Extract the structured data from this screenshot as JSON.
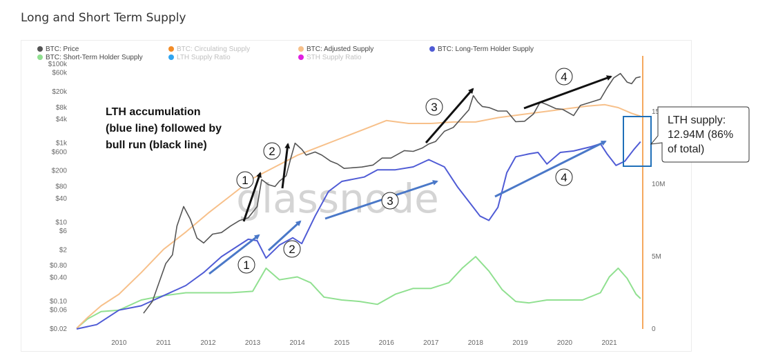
{
  "page": {
    "title": "Long and Short Term Supply"
  },
  "chart_data": {
    "type": "line",
    "title": "Long and Short Term Supply",
    "x_ticks": [
      "2010",
      "2011",
      "2012",
      "2013",
      "2014",
      "2015",
      "2016",
      "2017",
      "2018",
      "2019",
      "2020",
      "2021"
    ],
    "x_range": [
      2009.05,
      2021.75
    ],
    "y_left": {
      "scale": "log",
      "range": [
        0.02,
        100000
      ],
      "ticks": [
        {
          "label": "$100k",
          "value": 100000
        },
        {
          "label": "$60k",
          "value": 60000
        },
        {
          "label": "$20k",
          "value": 20000
        },
        {
          "label": "$8k",
          "value": 8000
        },
        {
          "label": "$4k",
          "value": 4000
        },
        {
          "label": "$1k",
          "value": 1000
        },
        {
          "label": "$600",
          "value": 600
        },
        {
          "label": "$200",
          "value": 200
        },
        {
          "label": "$80",
          "value": 80
        },
        {
          "label": "$40",
          "value": 40
        },
        {
          "label": "$10",
          "value": 10
        },
        {
          "label": "$6",
          "value": 6
        },
        {
          "label": "$2",
          "value": 2
        },
        {
          "label": "$0.80",
          "value": 0.8
        },
        {
          "label": "$0.40",
          "value": 0.4
        },
        {
          "label": "$0.10",
          "value": 0.1
        },
        {
          "label": "$0.06",
          "value": 0.06
        },
        {
          "label": "$0.02",
          "value": 0.02
        }
      ]
    },
    "y_right": {
      "scale": "linear",
      "range": [
        0,
        18300000
      ],
      "ticks": [
        {
          "label": "0",
          "value": 0
        },
        {
          "label": "5M",
          "value": 5000000
        },
        {
          "label": "10M",
          "value": 10000000
        },
        {
          "label": "15M",
          "value": 15000000
        }
      ]
    },
    "legend": [
      {
        "label": "BTC: Price",
        "color": "#555555",
        "active": true
      },
      {
        "label": "BTC: Circulating Supply",
        "color": "#f28c28",
        "active": false
      },
      {
        "label": "BTC: Adjusted Supply",
        "color": "#f7c08a",
        "active": true
      },
      {
        "label": "BTC: Long-Term Holder Supply",
        "color": "#4f5bd5",
        "active": true
      },
      {
        "label": "BTC: Short-Term Holder Supply",
        "color": "#90e090",
        "active": true
      },
      {
        "label": "LTH Supply Ratio",
        "color": "#30a5f0",
        "active": false
      },
      {
        "label": "STH Supply Ratio",
        "color": "#e020e0",
        "active": false
      }
    ],
    "watermark": "glassnode",
    "series": [
      {
        "name": "BTC: Price",
        "axis": "left",
        "color": "#555555",
        "points": [
          [
            2010.55,
            0.05
          ],
          [
            2010.75,
            0.1
          ],
          [
            2010.9,
            0.3
          ],
          [
            2011.05,
            0.9
          ],
          [
            2011.2,
            1.5
          ],
          [
            2011.3,
            8
          ],
          [
            2011.45,
            25
          ],
          [
            2011.6,
            12
          ],
          [
            2011.75,
            4
          ],
          [
            2011.9,
            3
          ],
          [
            2012.1,
            5
          ],
          [
            2012.3,
            5.5
          ],
          [
            2012.5,
            8
          ],
          [
            2012.7,
            11
          ],
          [
            2012.9,
            13
          ],
          [
            2013.1,
            25
          ],
          [
            2013.2,
            120
          ],
          [
            2013.35,
            90
          ],
          [
            2013.5,
            80
          ],
          [
            2013.6,
            110
          ],
          [
            2013.75,
            150
          ],
          [
            2013.85,
            400
          ],
          [
            2013.95,
            1000
          ],
          [
            2014.1,
            700
          ],
          [
            2014.2,
            500
          ],
          [
            2014.4,
            600
          ],
          [
            2014.55,
            500
          ],
          [
            2014.75,
            350
          ],
          [
            2014.9,
            300
          ],
          [
            2015.05,
            230
          ],
          [
            2015.25,
            240
          ],
          [
            2015.45,
            250
          ],
          [
            2015.7,
            280
          ],
          [
            2015.9,
            420
          ],
          [
            2016.1,
            420
          ],
          [
            2016.4,
            650
          ],
          [
            2016.6,
            620
          ],
          [
            2016.8,
            750
          ],
          [
            2016.95,
            960
          ],
          [
            2017.1,
            1100
          ],
          [
            2017.3,
            2000
          ],
          [
            2017.5,
            2500
          ],
          [
            2017.7,
            4500
          ],
          [
            2017.85,
            7000
          ],
          [
            2017.95,
            16000
          ],
          [
            2018.05,
            11000
          ],
          [
            2018.15,
            8500
          ],
          [
            2018.3,
            8000
          ],
          [
            2018.5,
            6500
          ],
          [
            2018.7,
            6500
          ],
          [
            2018.9,
            3500
          ],
          [
            2019.1,
            3600
          ],
          [
            2019.3,
            5500
          ],
          [
            2019.45,
            11000
          ],
          [
            2019.6,
            9500
          ],
          [
            2019.8,
            7500
          ],
          [
            2019.95,
            7200
          ],
          [
            2020.2,
            5000
          ],
          [
            2020.35,
            9000
          ],
          [
            2020.6,
            11000
          ],
          [
            2020.8,
            13000
          ],
          [
            2020.95,
            25000
          ],
          [
            2021.1,
            45000
          ],
          [
            2021.25,
            58000
          ],
          [
            2021.4,
            35000
          ],
          [
            2021.5,
            32000
          ],
          [
            2021.6,
            45000
          ],
          [
            2021.7,
            48000
          ]
        ]
      },
      {
        "name": "BTC: Adjusted Supply",
        "axis": "right",
        "color": "#f7c08a",
        "points": [
          [
            2009.05,
            0.05
          ],
          [
            2009.3,
            0.8
          ],
          [
            2009.6,
            1.6
          ],
          [
            2010.0,
            2.4
          ],
          [
            2010.5,
            3.9
          ],
          [
            2011.0,
            5.5
          ],
          [
            2011.5,
            6.7
          ],
          [
            2012.0,
            8.0
          ],
          [
            2012.5,
            9.2
          ],
          [
            2013.0,
            10.4
          ],
          [
            2013.5,
            11.2
          ],
          [
            2014.0,
            12.0
          ],
          [
            2014.5,
            12.6
          ],
          [
            2015.0,
            13.2
          ],
          [
            2015.5,
            13.8
          ],
          [
            2016.0,
            14.4
          ],
          [
            2016.5,
            14.2
          ],
          [
            2017.0,
            14.2
          ],
          [
            2017.5,
            14.3
          ],
          [
            2018.0,
            14.3
          ],
          [
            2018.5,
            14.6
          ],
          [
            2019.0,
            14.8
          ],
          [
            2019.5,
            15.0
          ],
          [
            2020.0,
            15.2
          ],
          [
            2020.5,
            15.4
          ],
          [
            2020.9,
            15.5
          ],
          [
            2021.2,
            15.3
          ],
          [
            2021.5,
            14.9
          ],
          [
            2021.7,
            14.7
          ]
        ]
      },
      {
        "name": "BTC: Long-Term Holder Supply",
        "axis": "right",
        "color": "#4f5bd5",
        "points": [
          [
            2009.05,
            0
          ],
          [
            2009.5,
            0.3
          ],
          [
            2010.0,
            1.3
          ],
          [
            2010.5,
            1.6
          ],
          [
            2011.0,
            2.3
          ],
          [
            2011.5,
            3.0
          ],
          [
            2011.9,
            3.9
          ],
          [
            2012.3,
            5.0
          ],
          [
            2012.6,
            5.6
          ],
          [
            2012.9,
            6.2
          ],
          [
            2013.1,
            6.1
          ],
          [
            2013.3,
            4.9
          ],
          [
            2013.6,
            5.8
          ],
          [
            2013.9,
            6.3
          ],
          [
            2014.1,
            5.9
          ],
          [
            2014.4,
            7.8
          ],
          [
            2014.7,
            9.5
          ],
          [
            2015.0,
            10.2
          ],
          [
            2015.5,
            10.5
          ],
          [
            2015.8,
            11.0
          ],
          [
            2016.2,
            11.0
          ],
          [
            2016.6,
            11.2
          ],
          [
            2016.95,
            11.7
          ],
          [
            2017.3,
            11.2
          ],
          [
            2017.6,
            9.8
          ],
          [
            2017.9,
            8.6
          ],
          [
            2018.1,
            7.8
          ],
          [
            2018.3,
            7.5
          ],
          [
            2018.5,
            8.4
          ],
          [
            2018.7,
            10.8
          ],
          [
            2018.9,
            11.9
          ],
          [
            2019.2,
            12.1
          ],
          [
            2019.4,
            12.2
          ],
          [
            2019.6,
            11.4
          ],
          [
            2019.9,
            12.2
          ],
          [
            2020.2,
            12.3
          ],
          [
            2020.6,
            12.6
          ],
          [
            2020.8,
            12.8
          ],
          [
            2020.95,
            12.1
          ],
          [
            2021.15,
            11.3
          ],
          [
            2021.35,
            11.6
          ],
          [
            2021.55,
            12.4
          ],
          [
            2021.7,
            12.94
          ]
        ]
      },
      {
        "name": "BTC: Short-Term Holder Supply",
        "axis": "right",
        "color": "#90e090",
        "points": [
          [
            2009.05,
            0.05
          ],
          [
            2009.3,
            0.7
          ],
          [
            2009.6,
            1.2
          ],
          [
            2010.0,
            1.3
          ],
          [
            2010.5,
            2.0
          ],
          [
            2011.0,
            2.3
          ],
          [
            2011.5,
            2.5
          ],
          [
            2012.0,
            2.5
          ],
          [
            2012.5,
            2.5
          ],
          [
            2013.0,
            2.6
          ],
          [
            2013.3,
            4.2
          ],
          [
            2013.6,
            3.4
          ],
          [
            2014.0,
            3.6
          ],
          [
            2014.3,
            3.2
          ],
          [
            2014.6,
            2.2
          ],
          [
            2015.0,
            2.0
          ],
          [
            2015.4,
            1.9
          ],
          [
            2015.8,
            1.7
          ],
          [
            2016.2,
            2.4
          ],
          [
            2016.6,
            2.8
          ],
          [
            2017.0,
            2.8
          ],
          [
            2017.4,
            3.2
          ],
          [
            2017.7,
            4.2
          ],
          [
            2018.0,
            5.0
          ],
          [
            2018.3,
            4.0
          ],
          [
            2018.6,
            2.7
          ],
          [
            2018.9,
            1.9
          ],
          [
            2019.2,
            1.8
          ],
          [
            2019.6,
            2.0
          ],
          [
            2020.0,
            2.0
          ],
          [
            2020.4,
            2.0
          ],
          [
            2020.8,
            2.5
          ],
          [
            2021.0,
            3.6
          ],
          [
            2021.2,
            4.2
          ],
          [
            2021.4,
            3.5
          ],
          [
            2021.6,
            2.4
          ],
          [
            2021.7,
            2.1
          ]
        ]
      }
    ],
    "annotations": {
      "text_box": "LTH accumulation (blue line) followed by bull run (black line)",
      "callout": "LTH supply: 12.94M (86% of total)",
      "black_arrow_labels": [
        "1",
        "2",
        "3",
        "4"
      ],
      "blue_arrow_labels": [
        "1",
        "2",
        "3",
        "4"
      ]
    }
  }
}
